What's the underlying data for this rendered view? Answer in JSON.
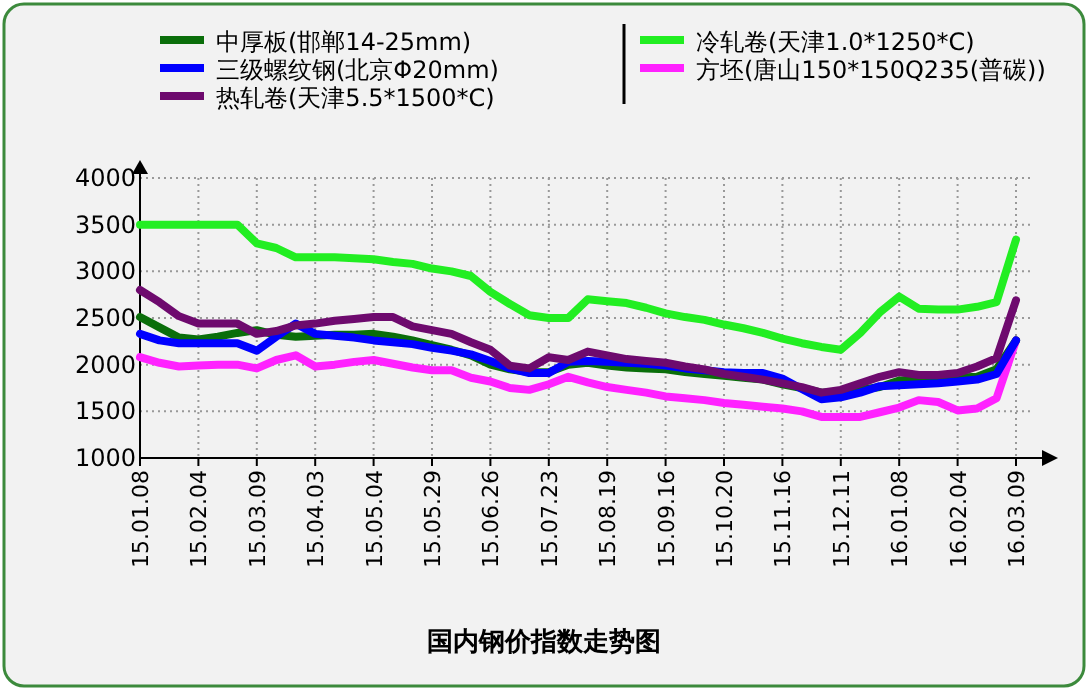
{
  "chart_data": {
    "type": "line",
    "title": "国内钢价指数走势图",
    "legend": "top",
    "grid": true,
    "ylim": [
      1000,
      4000
    ],
    "yticks": [
      1000,
      1500,
      2000,
      2500,
      3000,
      3500,
      4000
    ],
    "categories": [
      "15.01.08",
      null,
      null,
      "15.02.04",
      null,
      null,
      "15.03.09",
      null,
      null,
      "15.04.03",
      null,
      null,
      "15.05.04",
      null,
      null,
      "15.05.29",
      null,
      null,
      "15.06.26",
      null,
      null,
      "15.07.23",
      null,
      null,
      "15.08.19",
      null,
      null,
      "15.09.16",
      null,
      null,
      "15.10.20",
      null,
      null,
      "15.11.16",
      null,
      null,
      "15.12.11",
      null,
      null,
      "16.01.08",
      null,
      null,
      "16.02.04",
      null,
      null,
      "16.03.09"
    ],
    "series": [
      {
        "name": "冷轧卷(天津1.0*1250*C)",
        "color": "#22ee22",
        "values": [
          3500,
          3500,
          3500,
          3500,
          3500,
          3500,
          3300,
          3250,
          3150,
          3150,
          3150,
          3140,
          3130,
          3100,
          3080,
          3030,
          3000,
          2950,
          2780,
          2650,
          2530,
          2500,
          2500,
          2700,
          2680,
          2660,
          2610,
          2550,
          2510,
          2480,
          2430,
          2390,
          2340,
          2280,
          2230,
          2190,
          2160,
          2340,
          2560,
          2730,
          2600,
          2590,
          2590,
          2620,
          2670,
          3340
        ]
      },
      {
        "name": "方坯(唐山150*150Q235(普碳))",
        "color": "#ff22ff",
        "values": [
          2080,
          2020,
          1980,
          1990,
          2000,
          2000,
          1960,
          2050,
          2100,
          1980,
          2000,
          2030,
          2050,
          2010,
          1970,
          1940,
          1940,
          1860,
          1820,
          1750,
          1730,
          1790,
          1870,
          1810,
          1760,
          1730,
          1700,
          1660,
          1640,
          1620,
          1590,
          1570,
          1550,
          1530,
          1500,
          1440,
          1440,
          1440,
          1490,
          1540,
          1620,
          1600,
          1510,
          1530,
          1640,
          2260
        ]
      },
      {
        "name": "中厚板(邯郸14-25mm)",
        "color": "#0a6e0a",
        "values": [
          2510,
          2400,
          2290,
          2270,
          2300,
          2340,
          2370,
          2320,
          2300,
          2310,
          2320,
          2320,
          2330,
          2300,
          2260,
          2210,
          2160,
          2100,
          2000,
          1950,
          1920,
          1920,
          2000,
          2020,
          1990,
          1970,
          1960,
          1950,
          1920,
          1900,
          1880,
          1860,
          1840,
          1790,
          1750,
          1700,
          1710,
          1730,
          1760,
          1830,
          1840,
          1850,
          1860,
          1870,
          1950,
          2260
        ]
      },
      {
        "name": "三级螺纹钢(北京Φ20mm)",
        "color": "#0000ff",
        "values": [
          2330,
          2260,
          2230,
          2230,
          2230,
          2230,
          2150,
          2300,
          2440,
          2330,
          2310,
          2290,
          2260,
          2240,
          2220,
          2180,
          2150,
          2110,
          2040,
          1960,
          1910,
          1910,
          2030,
          2040,
          2030,
          2020,
          2010,
          1990,
          1960,
          1940,
          1920,
          1910,
          1910,
          1850,
          1740,
          1630,
          1650,
          1700,
          1770,
          1780,
          1790,
          1800,
          1820,
          1840,
          1900,
          2260
        ]
      },
      {
        "name": "热轧卷(天津5.5*1500*C)",
        "color": "#6e0a6e",
        "values": [
          2800,
          2670,
          2520,
          2440,
          2440,
          2440,
          2330,
          2360,
          2420,
          2440,
          2470,
          2490,
          2510,
          2510,
          2410,
          2370,
          2330,
          2240,
          2160,
          1990,
          1960,
          2080,
          2050,
          2140,
          2100,
          2060,
          2040,
          2020,
          1980,
          1950,
          1900,
          1870,
          1840,
          1800,
          1760,
          1700,
          1730,
          1800,
          1870,
          1920,
          1890,
          1890,
          1910,
          1980,
          2070,
          2690
        ]
      }
    ]
  }
}
